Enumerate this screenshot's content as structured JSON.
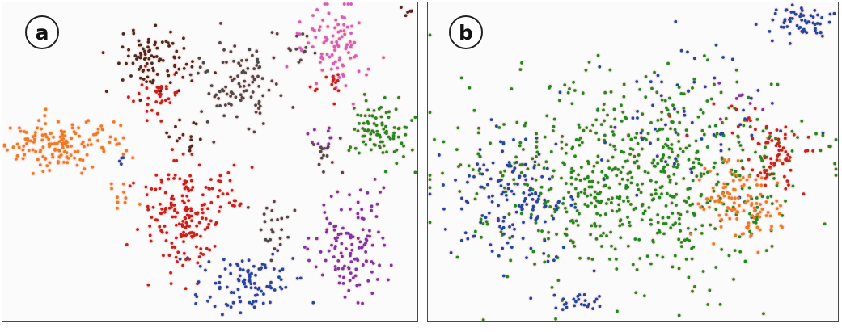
{
  "panels": [
    {
      "label": "a"
    },
    {
      "label": "b"
    }
  ],
  "colors": {
    "orange": "#f07a1e",
    "red": "#c9201c",
    "dark_brown": "#4b2a20",
    "dark_gray": "#4a4a4a",
    "pink": "#d65cb8",
    "green": "#1f8a1f",
    "purple": "#7a35a8",
    "blue": "#1e48a8",
    "halo": "#f6d2cc",
    "background": "#fcfbfc"
  },
  "chart_data": [
    {
      "type": "scatter",
      "label": "a",
      "axes": "none",
      "grid": false,
      "legend": "none",
      "xlim": [
        0,
        100
      ],
      "ylim": [
        0,
        100
      ],
      "clusters": [
        {
          "color": "orange",
          "x": 14,
          "y": 55,
          "sx": 7,
          "sy": 4,
          "n": 150
        },
        {
          "color": "orange",
          "x": 29,
          "y": 40,
          "sx": 2.5,
          "sy": 2,
          "n": 10
        },
        {
          "color": "red",
          "x": 43,
          "y": 33,
          "sx": 5,
          "sy": 9,
          "n": 170
        },
        {
          "color": "red",
          "x": 37,
          "y": 70,
          "sx": 3,
          "sy": 4,
          "n": 35
        },
        {
          "color": "red",
          "x": 54,
          "y": 42,
          "sx": 2,
          "sy": 5,
          "n": 20
        },
        {
          "color": "dark_brown",
          "x": 37,
          "y": 82,
          "sx": 5,
          "sy": 5,
          "n": 90
        },
        {
          "color": "dark_brown",
          "x": 44,
          "y": 58,
          "sx": 2,
          "sy": 4,
          "n": 15
        },
        {
          "color": "dark_gray",
          "x": 56,
          "y": 74,
          "sx": 5,
          "sy": 7,
          "n": 100
        },
        {
          "color": "dark_gray",
          "x": 64,
          "y": 28,
          "sx": 2.5,
          "sy": 5,
          "n": 25
        },
        {
          "color": "dark_gray",
          "x": 71,
          "y": 88,
          "sx": 3,
          "sy": 3,
          "n": 12
        },
        {
          "color": "dark_gray",
          "x": 78,
          "y": 52,
          "sx": 1.8,
          "sy": 4,
          "n": 14
        },
        {
          "color": "pink",
          "x": 80,
          "y": 87,
          "sx": 4.5,
          "sy": 7,
          "n": 90
        },
        {
          "color": "red",
          "x": 80,
          "y": 75,
          "sx": 2,
          "sy": 3,
          "n": 14
        },
        {
          "color": "green",
          "x": 91,
          "y": 59,
          "sx": 3.5,
          "sy": 5,
          "n": 90
        },
        {
          "color": "purple",
          "x": 84,
          "y": 24,
          "sx": 4.5,
          "sy": 9,
          "n": 120
        },
        {
          "color": "purple",
          "x": 78,
          "y": 58,
          "sx": 1.5,
          "sy": 2.5,
          "n": 10
        },
        {
          "color": "blue",
          "x": 58,
          "y": 12,
          "sx": 6,
          "sy": 4.5,
          "n": 100
        },
        {
          "color": "blue",
          "x": 28,
          "y": 50,
          "sx": 1.2,
          "sy": 1.2,
          "n": 4
        },
        {
          "color": "dark_brown",
          "x": 98,
          "y": 97,
          "sx": 0.8,
          "sy": 0.8,
          "n": 6
        }
      ]
    },
    {
      "type": "scatter",
      "label": "b",
      "axes": "none",
      "grid": false,
      "legend": "none",
      "xlim": [
        0,
        100
      ],
      "ylim": [
        0,
        100
      ],
      "clusters": [
        {
          "color": "green",
          "x": 50,
          "y": 44,
          "sx": 20,
          "sy": 16,
          "n": 700
        },
        {
          "color": "blue",
          "x": 20,
          "y": 37,
          "sx": 8,
          "sy": 10,
          "n": 150
        },
        {
          "color": "blue",
          "x": 60,
          "y": 63,
          "sx": 14,
          "sy": 12,
          "n": 60
        },
        {
          "color": "blue",
          "x": 36,
          "y": 6,
          "sx": 3,
          "sy": 1.5,
          "n": 25
        },
        {
          "color": "blue",
          "x": 90,
          "y": 94,
          "sx": 3.5,
          "sy": 2.5,
          "n": 60
        },
        {
          "color": "orange",
          "x": 77,
          "y": 37,
          "sx": 5,
          "sy": 6,
          "n": 110
        },
        {
          "color": "red",
          "x": 84,
          "y": 52,
          "sx": 4,
          "sy": 5,
          "n": 60
        },
        {
          "color": "red",
          "x": 72,
          "y": 64,
          "sx": 4,
          "sy": 4,
          "n": 12
        },
        {
          "color": "purple",
          "x": 77,
          "y": 70,
          "sx": 3,
          "sy": 4,
          "n": 8
        }
      ]
    }
  ]
}
